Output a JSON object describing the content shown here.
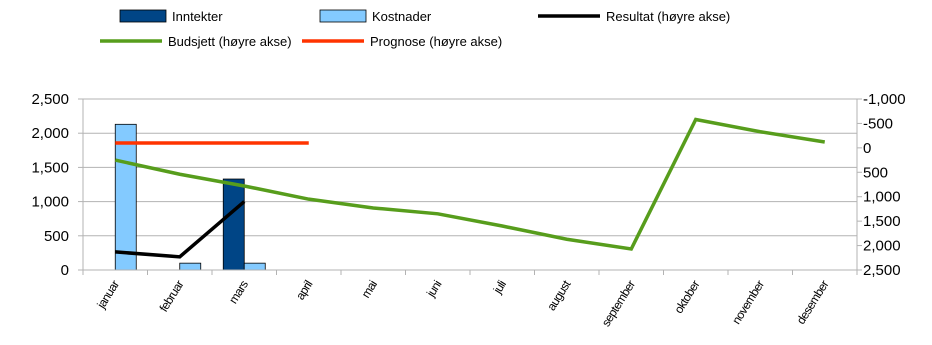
{
  "chart_data": {
    "type": "bar",
    "categories": [
      "januar",
      "februar",
      "mars",
      "april",
      "mai",
      "juni",
      "juli",
      "august",
      "september",
      "oktober",
      "november",
      "desember"
    ],
    "series": [
      {
        "name": "Inntekter",
        "kind": "bar",
        "axis": "left",
        "color": "#004586",
        "values": [
          0,
          0,
          1330,
          null,
          null,
          null,
          null,
          null,
          null,
          null,
          null,
          null
        ]
      },
      {
        "name": "Kostnader",
        "kind": "bar",
        "axis": "left",
        "color": "#83caff",
        "values": [
          2130,
          100,
          100,
          null,
          null,
          null,
          null,
          null,
          null,
          null,
          null,
          null
        ]
      },
      {
        "name": "Resultat (høyre akse)",
        "kind": "line",
        "axis": "right",
        "color": "#000000",
        "values": [
          2130,
          2230,
          1100,
          null,
          null,
          null,
          null,
          null,
          null,
          null,
          null,
          null
        ]
      },
      {
        "name": "Budsjett (høyre akse)",
        "kind": "line",
        "axis": "right",
        "color": "#579d1c",
        "values": [
          250,
          540,
          780,
          1050,
          1230,
          1350,
          1600,
          1870,
          2070,
          -580,
          -330,
          -120
        ]
      },
      {
        "name": "Prognose (høyre akse)",
        "kind": "line",
        "axis": "right",
        "color": "#ff3300",
        "values": [
          -100,
          -100,
          -100,
          -100,
          null,
          null,
          null,
          null,
          null,
          null,
          null,
          null
        ]
      }
    ],
    "left_axis": {
      "ylim": [
        0,
        2500
      ],
      "ticks": [
        0,
        500,
        1000,
        1500,
        2000,
        2500
      ],
      "tick_labels": [
        "0",
        "500",
        "1,000",
        "1,500",
        "2,000",
        "2,500"
      ]
    },
    "right_axis": {
      "ylim": [
        -1000,
        2500
      ],
      "reversed": true,
      "ticks": [
        -1000,
        -500,
        0,
        500,
        1000,
        1500,
        2000,
        2500
      ],
      "tick_labels": [
        "-1,000",
        "-500",
        "0",
        "500",
        "1,000",
        "1,500",
        "2,000",
        "2,500"
      ]
    },
    "grid": true,
    "legend_position": "top"
  }
}
